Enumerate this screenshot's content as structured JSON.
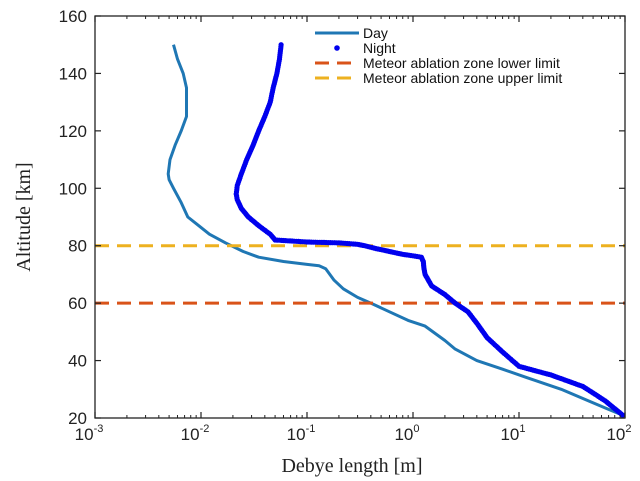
{
  "chart_data": {
    "type": "line",
    "xlabel": "Debye length [m]",
    "ylabel": "Altitude [km]",
    "x_scale": "log",
    "xlim": [
      0.001,
      100
    ],
    "ylim": [
      20,
      160
    ],
    "grid": false,
    "legend_position": "top-right",
    "x_ticks": [
      {
        "base": "10",
        "exp": "-3",
        "value": 0.001
      },
      {
        "base": "10",
        "exp": "-2",
        "value": 0.01
      },
      {
        "base": "10",
        "exp": "-1",
        "value": 0.1
      },
      {
        "base": "10",
        "exp": "0",
        "value": 1
      },
      {
        "base": "10",
        "exp": "1",
        "value": 10
      },
      {
        "base": "10",
        "exp": "2",
        "value": 100
      }
    ],
    "y_ticks": [
      {
        "label": "20",
        "value": 20
      },
      {
        "label": "40",
        "value": 40
      },
      {
        "label": "60",
        "value": 60
      },
      {
        "label": "80",
        "value": 80
      },
      {
        "label": "100",
        "value": 100
      },
      {
        "label": "120",
        "value": 120
      },
      {
        "label": "140",
        "value": 140
      },
      {
        "label": "160",
        "value": 160
      }
    ],
    "series": [
      {
        "name": "Day",
        "style": "line",
        "color": "#1f77b4",
        "points": [
          [
            0.0055,
            150
          ],
          [
            0.006,
            145
          ],
          [
            0.0068,
            140
          ],
          [
            0.0073,
            135
          ],
          [
            0.0073,
            125
          ],
          [
            0.0065,
            120
          ],
          [
            0.0057,
            115
          ],
          [
            0.0051,
            110
          ],
          [
            0.0049,
            105
          ],
          [
            0.005,
            103
          ],
          [
            0.0055,
            100
          ],
          [
            0.0065,
            95
          ],
          [
            0.0075,
            90
          ],
          [
            0.0095,
            87
          ],
          [
            0.012,
            84
          ],
          [
            0.017,
            81
          ],
          [
            0.025,
            78
          ],
          [
            0.035,
            76
          ],
          [
            0.06,
            74.5
          ],
          [
            0.1,
            73.5
          ],
          [
            0.13,
            73
          ],
          [
            0.15,
            72
          ],
          [
            0.18,
            68
          ],
          [
            0.22,
            65
          ],
          [
            0.3,
            62
          ],
          [
            0.4,
            60
          ],
          [
            0.6,
            57
          ],
          [
            0.9,
            54
          ],
          [
            1.3,
            52
          ],
          [
            2,
            47
          ],
          [
            2.5,
            44
          ],
          [
            4,
            40
          ],
          [
            7,
            37
          ],
          [
            12,
            34
          ],
          [
            25,
            30
          ],
          [
            45,
            26
          ],
          [
            70,
            23
          ],
          [
            95,
            21
          ]
        ]
      },
      {
        "name": "Night",
        "style": "markers",
        "color": "#0000ee",
        "points": [
          [
            0.057,
            150
          ],
          [
            0.055,
            145
          ],
          [
            0.052,
            140
          ],
          [
            0.048,
            135
          ],
          [
            0.045,
            130
          ],
          [
            0.04,
            125
          ],
          [
            0.035,
            120
          ],
          [
            0.031,
            115
          ],
          [
            0.027,
            110
          ],
          [
            0.024,
            105
          ],
          [
            0.022,
            101
          ],
          [
            0.0215,
            98
          ],
          [
            0.022,
            96
          ],
          [
            0.024,
            93
          ],
          [
            0.028,
            90
          ],
          [
            0.035,
            87
          ],
          [
            0.045,
            84
          ],
          [
            0.05,
            82
          ],
          [
            0.1,
            81.3
          ],
          [
            0.2,
            81
          ],
          [
            0.3,
            80.5
          ],
          [
            0.35,
            80
          ],
          [
            0.45,
            79
          ],
          [
            0.6,
            78
          ],
          [
            0.8,
            77
          ],
          [
            1.0,
            76.5
          ],
          [
            1.2,
            76
          ],
          [
            1.25,
            74.5
          ],
          [
            1.27,
            72
          ],
          [
            1.3,
            70
          ],
          [
            1.5,
            66
          ],
          [
            2.0,
            63
          ],
          [
            2.5,
            60
          ],
          [
            3.3,
            57
          ],
          [
            4.0,
            53
          ],
          [
            5.0,
            48
          ],
          [
            7.0,
            43
          ],
          [
            10,
            38
          ],
          [
            20,
            35
          ],
          [
            40,
            31
          ],
          [
            65,
            26
          ],
          [
            95,
            21
          ]
        ]
      },
      {
        "name": "Meteor ablation zone lower limit",
        "style": "dashed",
        "color": "#d95319",
        "points": [
          [
            0.001,
            60
          ],
          [
            100,
            60
          ]
        ]
      },
      {
        "name": "Meteor ablation zone upper limit",
        "style": "dashed",
        "color": "#edb120",
        "points": [
          [
            0.001,
            80
          ],
          [
            100,
            80
          ]
        ]
      }
    ]
  }
}
